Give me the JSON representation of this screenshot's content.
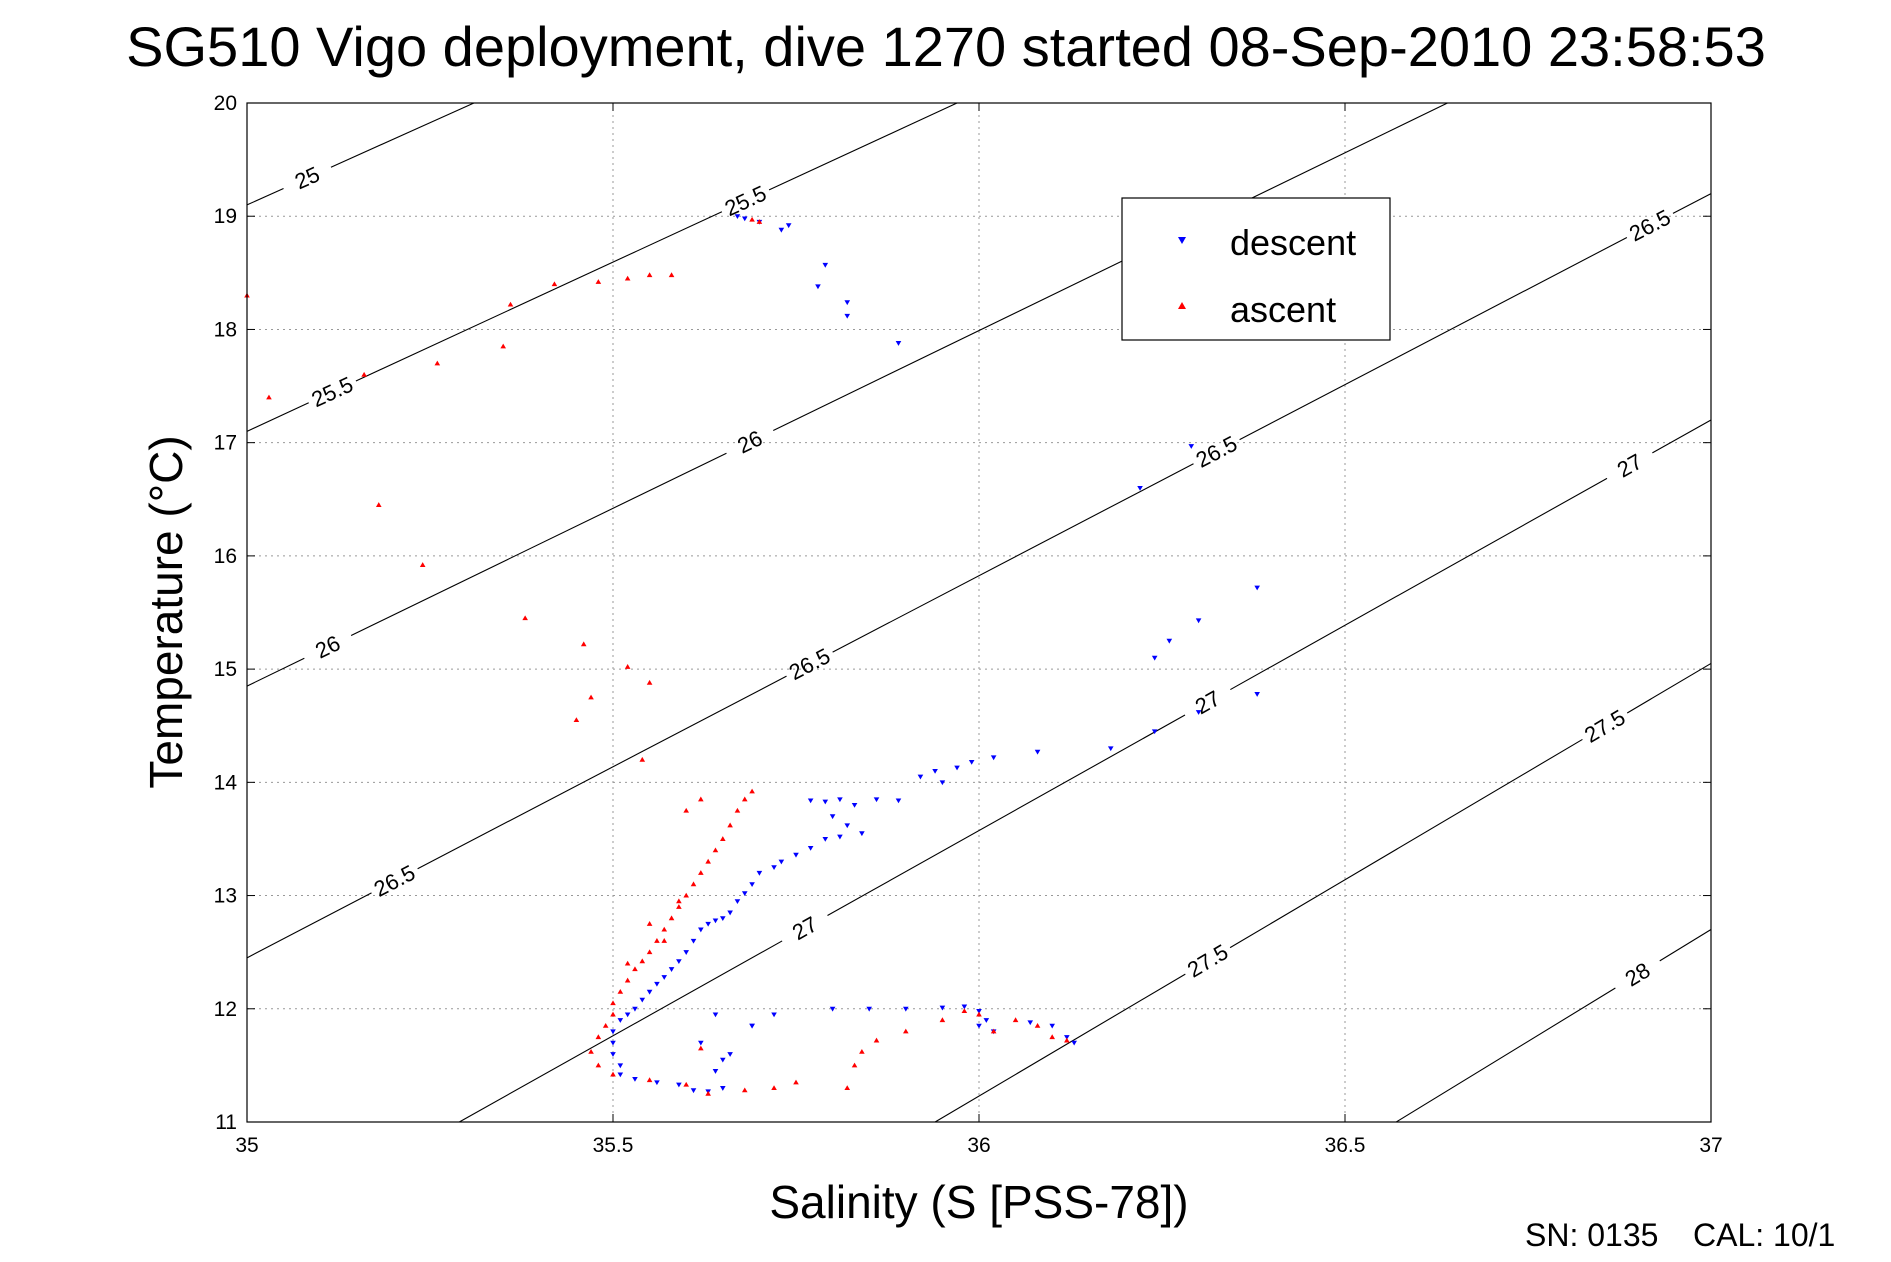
{
  "footer": {
    "sn_label": "SN: 0135",
    "cal_label": "CAL: 10/1"
  },
  "chart_data": {
    "type": "scatter",
    "title": "SG510 Vigo deployment, dive 1270 started 08-Sep-2010 23:58:53",
    "xlabel": "Salinity (S [PSS-78])",
    "ylabel": "Temperature (°C)",
    "xlim": [
      35,
      37
    ],
    "ylim": [
      11,
      20
    ],
    "xticks": [
      35,
      35.5,
      36,
      36.5,
      37
    ],
    "xtick_labels": [
      "35",
      "35.5",
      "36",
      "36.5",
      "37"
    ],
    "yticks": [
      11,
      12,
      13,
      14,
      15,
      16,
      17,
      18,
      19,
      20
    ],
    "ytick_labels": [
      "11",
      "12",
      "13",
      "14",
      "15",
      "16",
      "17",
      "18",
      "19",
      "20"
    ],
    "grid": true,
    "legend": "inside, upper right",
    "colors": {
      "descent": "#0000ff",
      "ascent": "#ff0000",
      "contour": "#000000"
    },
    "density_contours": [
      {
        "level": 25,
        "label": "25",
        "points": [
          [
            35,
            19.1
          ],
          [
            35.31,
            20
          ]
        ],
        "labels_at": [
          [
            35.085,
            19.3
          ]
        ]
      },
      {
        "level": 25.5,
        "label": "25.5",
        "points": [
          [
            35,
            17.1
          ],
          [
            35.97,
            20
          ]
        ],
        "labels_at": [
          [
            35.12,
            17.4
          ],
          [
            35.68,
            19.15
          ]
        ]
      },
      {
        "level": 26,
        "label": "26",
        "points": [
          [
            35,
            14.85
          ],
          [
            36.64,
            20
          ]
        ],
        "labels_at": [
          [
            35.11,
            15.2
          ],
          [
            35.68,
            17.1
          ]
        ]
      },
      {
        "level": 26.5,
        "label": "26.5",
        "points": [
          [
            35,
            12.45
          ],
          [
            37,
            19.2
          ]
        ],
        "labels_at": [
          [
            35.2,
            13.15
          ],
          [
            35.76,
            15.15
          ],
          [
            36.31,
            17.1
          ],
          [
            36.91,
            19.0
          ]
        ]
      },
      {
        "level": 27,
        "label": "27",
        "points": [
          [
            35.29,
            11
          ],
          [
            37,
            17.2
          ]
        ],
        "labels_at": [
          [
            35.75,
            12.85
          ],
          [
            36.3,
            14.85
          ],
          [
            36.88,
            16.9
          ]
        ]
      },
      {
        "level": 27.5,
        "label": "27.5",
        "points": [
          [
            35.94,
            11
          ],
          [
            37,
            15.05
          ]
        ],
        "labels_at": [
          [
            36.31,
            12.45
          ],
          [
            36.85,
            14.55
          ]
        ]
      },
      {
        "level": 28,
        "label": "28",
        "points": [
          [
            36.57,
            11
          ],
          [
            37,
            12.7
          ]
        ],
        "labels_at": [
          [
            36.9,
            12.3
          ]
        ]
      }
    ],
    "series": [
      {
        "name": "descent",
        "marker": "triangle-down",
        "color": "#0000ff",
        "points": [
          [
            35.67,
            19.0
          ],
          [
            35.68,
            18.98
          ],
          [
            35.7,
            18.95
          ],
          [
            35.73,
            18.88
          ],
          [
            35.74,
            18.92
          ],
          [
            35.79,
            18.57
          ],
          [
            35.78,
            18.38
          ],
          [
            35.82,
            18.24
          ],
          [
            35.82,
            18.12
          ],
          [
            35.89,
            17.88
          ],
          [
            36.29,
            16.97
          ],
          [
            36.22,
            16.6
          ],
          [
            36.38,
            15.72
          ],
          [
            36.3,
            15.43
          ],
          [
            36.26,
            15.25
          ],
          [
            36.24,
            15.1
          ],
          [
            36.38,
            14.78
          ],
          [
            36.3,
            14.62
          ],
          [
            36.24,
            14.45
          ],
          [
            36.18,
            14.3
          ],
          [
            36.08,
            14.27
          ],
          [
            36.02,
            14.22
          ],
          [
            35.99,
            14.18
          ],
          [
            35.97,
            14.13
          ],
          [
            35.94,
            14.1
          ],
          [
            35.92,
            14.05
          ],
          [
            35.95,
            14.0
          ],
          [
            35.89,
            13.84
          ],
          [
            35.86,
            13.85
          ],
          [
            35.83,
            13.8
          ],
          [
            35.81,
            13.85
          ],
          [
            35.79,
            13.83
          ],
          [
            35.77,
            13.84
          ],
          [
            35.8,
            13.7
          ],
          [
            35.82,
            13.62
          ],
          [
            35.84,
            13.55
          ],
          [
            35.81,
            13.52
          ],
          [
            35.79,
            13.5
          ],
          [
            35.77,
            13.42
          ],
          [
            35.75,
            13.36
          ],
          [
            35.73,
            13.3
          ],
          [
            35.72,
            13.25
          ],
          [
            35.7,
            13.2
          ],
          [
            35.69,
            13.1
          ],
          [
            35.68,
            13.02
          ],
          [
            35.67,
            12.95
          ],
          [
            35.66,
            12.85
          ],
          [
            35.65,
            12.8
          ],
          [
            35.64,
            12.78
          ],
          [
            35.63,
            12.75
          ],
          [
            35.62,
            12.7
          ],
          [
            35.61,
            12.6
          ],
          [
            35.6,
            12.5
          ],
          [
            35.59,
            12.42
          ],
          [
            35.58,
            12.35
          ],
          [
            35.57,
            12.28
          ],
          [
            35.56,
            12.22
          ],
          [
            35.55,
            12.15
          ],
          [
            35.54,
            12.08
          ],
          [
            35.53,
            12.0
          ],
          [
            35.52,
            11.95
          ],
          [
            35.51,
            11.9
          ],
          [
            35.5,
            11.8
          ],
          [
            35.5,
            11.7
          ],
          [
            35.5,
            11.6
          ],
          [
            35.51,
            11.5
          ],
          [
            35.51,
            11.42
          ],
          [
            35.53,
            11.38
          ],
          [
            35.56,
            11.35
          ],
          [
            35.59,
            11.33
          ],
          [
            35.61,
            11.28
          ],
          [
            35.63,
            11.27
          ],
          [
            35.65,
            11.3
          ],
          [
            35.64,
            11.45
          ],
          [
            35.65,
            11.55
          ],
          [
            35.66,
            11.6
          ],
          [
            35.69,
            11.85
          ],
          [
            35.72,
            11.95
          ],
          [
            35.8,
            12.0
          ],
          [
            35.85,
            12.0
          ],
          [
            35.9,
            12.0
          ],
          [
            35.95,
            12.01
          ],
          [
            35.98,
            12.02
          ],
          [
            36.0,
            11.98
          ],
          [
            36.01,
            11.9
          ],
          [
            36.02,
            11.8
          ],
          [
            36.0,
            11.85
          ],
          [
            36.07,
            11.88
          ],
          [
            36.1,
            11.85
          ],
          [
            36.12,
            11.75
          ],
          [
            36.13,
            11.7
          ],
          [
            35.62,
            11.7
          ],
          [
            35.64,
            11.95
          ],
          [
            35.69,
            11.85
          ]
        ]
      },
      {
        "name": "ascent",
        "marker": "triangle-up",
        "color": "#ff0000",
        "points": [
          [
            35.0,
            18.3
          ],
          [
            35.03,
            17.4
          ],
          [
            35.16,
            17.6
          ],
          [
            35.26,
            17.7
          ],
          [
            35.35,
            17.85
          ],
          [
            35.36,
            18.22
          ],
          [
            35.42,
            18.4
          ],
          [
            35.48,
            18.42
          ],
          [
            35.52,
            18.45
          ],
          [
            35.55,
            18.48
          ],
          [
            35.58,
            18.48
          ],
          [
            35.69,
            18.97
          ],
          [
            35.7,
            18.95
          ],
          [
            35.18,
            16.45
          ],
          [
            35.24,
            15.92
          ],
          [
            35.38,
            15.45
          ],
          [
            35.46,
            15.22
          ],
          [
            35.47,
            14.75
          ],
          [
            35.45,
            14.55
          ],
          [
            35.52,
            15.02
          ],
          [
            35.55,
            14.88
          ],
          [
            35.54,
            14.2
          ],
          [
            35.69,
            13.92
          ],
          [
            35.68,
            13.85
          ],
          [
            35.67,
            13.75
          ],
          [
            35.66,
            13.62
          ],
          [
            35.65,
            13.5
          ],
          [
            35.64,
            13.4
          ],
          [
            35.63,
            13.3
          ],
          [
            35.62,
            13.2
          ],
          [
            35.61,
            13.1
          ],
          [
            35.6,
            13.0
          ],
          [
            35.59,
            12.9
          ],
          [
            35.58,
            12.8
          ],
          [
            35.57,
            12.7
          ],
          [
            35.56,
            12.6
          ],
          [
            35.55,
            12.5
          ],
          [
            35.54,
            12.42
          ],
          [
            35.53,
            12.35
          ],
          [
            35.52,
            12.25
          ],
          [
            35.51,
            12.15
          ],
          [
            35.5,
            12.05
          ],
          [
            35.5,
            11.95
          ],
          [
            35.49,
            11.85
          ],
          [
            35.48,
            11.75
          ],
          [
            35.47,
            11.62
          ],
          [
            35.48,
            11.5
          ],
          [
            35.5,
            11.42
          ],
          [
            35.55,
            11.37
          ],
          [
            35.6,
            11.33
          ],
          [
            35.63,
            11.25
          ],
          [
            35.68,
            11.28
          ],
          [
            35.72,
            11.3
          ],
          [
            35.75,
            11.35
          ],
          [
            35.82,
            11.3
          ],
          [
            35.83,
            11.5
          ],
          [
            35.84,
            11.62
          ],
          [
            35.86,
            11.72
          ],
          [
            35.9,
            11.8
          ],
          [
            35.95,
            11.9
          ],
          [
            35.98,
            11.98
          ],
          [
            36.0,
            11.95
          ],
          [
            36.02,
            11.8
          ],
          [
            36.05,
            11.9
          ],
          [
            36.08,
            11.85
          ],
          [
            36.1,
            11.75
          ],
          [
            36.12,
            11.72
          ],
          [
            35.62,
            11.65
          ],
          [
            35.59,
            12.95
          ],
          [
            35.57,
            12.6
          ],
          [
            35.6,
            13.75
          ],
          [
            35.62,
            13.85
          ],
          [
            35.52,
            12.4
          ],
          [
            35.55,
            12.75
          ]
        ]
      }
    ]
  }
}
